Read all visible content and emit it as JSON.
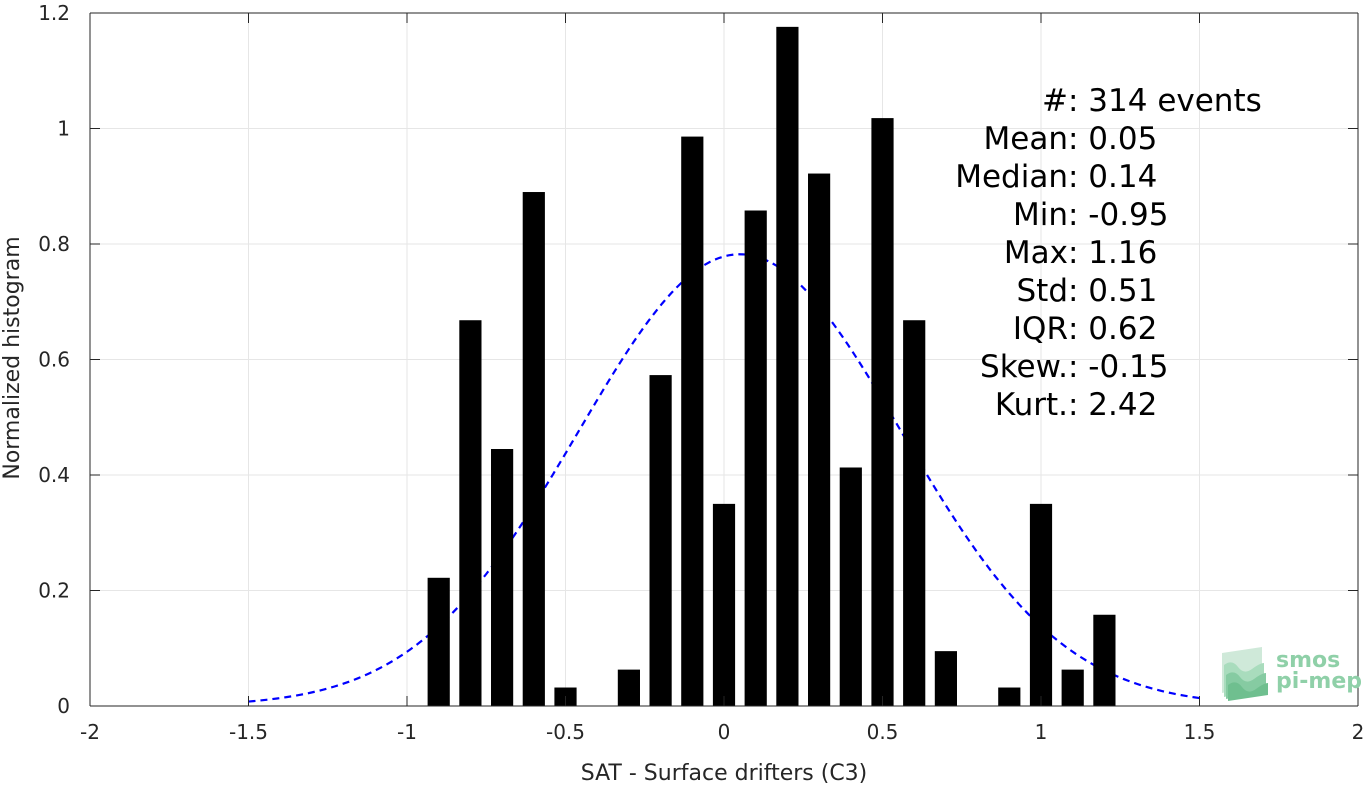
{
  "chart_data": {
    "type": "bar",
    "xlabel": "SAT - Surface drifters (C3)",
    "ylabel": "Normalized histogram",
    "xlim": [
      -2,
      2
    ],
    "ylim": [
      0,
      1.2
    ],
    "xticks": [
      "-2",
      "-1.5",
      "-1",
      "-0.5",
      "0",
      "0.5",
      "1",
      "1.5",
      "2"
    ],
    "yticks": [
      "0",
      "0.2",
      "0.4",
      "0.6",
      "0.8",
      "1",
      "1.2"
    ],
    "grid": true,
    "bar_width": 0.07,
    "bars": [
      {
        "x": -0.9,
        "y": 0.222
      },
      {
        "x": -0.8,
        "y": 0.668
      },
      {
        "x": -0.7,
        "y": 0.445
      },
      {
        "x": -0.6,
        "y": 0.89
      },
      {
        "x": -0.5,
        "y": 0.032
      },
      {
        "x": -0.3,
        "y": 0.063
      },
      {
        "x": -0.2,
        "y": 0.573
      },
      {
        "x": -0.1,
        "y": 0.986
      },
      {
        "x": 0.0,
        "y": 0.35
      },
      {
        "x": 0.1,
        "y": 0.858
      },
      {
        "x": 0.2,
        "y": 1.176
      },
      {
        "x": 0.3,
        "y": 0.922
      },
      {
        "x": 0.4,
        "y": 0.413
      },
      {
        "x": 0.5,
        "y": 1.018
      },
      {
        "x": 0.6,
        "y": 0.668
      },
      {
        "x": 0.7,
        "y": 0.095
      },
      {
        "x": 0.9,
        "y": 0.032
      },
      {
        "x": 1.0,
        "y": 0.35
      },
      {
        "x": 1.1,
        "y": 0.063
      },
      {
        "x": 1.2,
        "y": 0.158
      }
    ],
    "fit": {
      "type": "normal",
      "mean": 0.05,
      "std": 0.51,
      "x_range": [
        -1.5,
        1.5
      ],
      "color": "#0000ff",
      "style": "dashed"
    },
    "stats": [
      {
        "label": "#",
        "sep": "  : ",
        "value": "314 events"
      },
      {
        "label": "Mean",
        "sep": " : ",
        "value": "0.05"
      },
      {
        "label": "Median",
        "sep": " : ",
        "value": "0.14"
      },
      {
        "label": "Min",
        "sep": " : ",
        "value": "-0.95"
      },
      {
        "label": "Max",
        "sep": " : ",
        "value": "1.16"
      },
      {
        "label": "Std",
        "sep": " : ",
        "value": "0.51"
      },
      {
        "label": "IQR",
        "sep": " : ",
        "value": "0.62"
      },
      {
        "label": "Skew.",
        "sep": " : ",
        "value": "-0.15"
      },
      {
        "label": "Kurt.",
        "sep": " : ",
        "value": "2.42"
      }
    ],
    "colors": {
      "bar": "#000000",
      "axis": "#262626",
      "grid": "#e6e6e6"
    }
  },
  "logo": {
    "line1": "smos",
    "line2": "pi-mep"
  }
}
